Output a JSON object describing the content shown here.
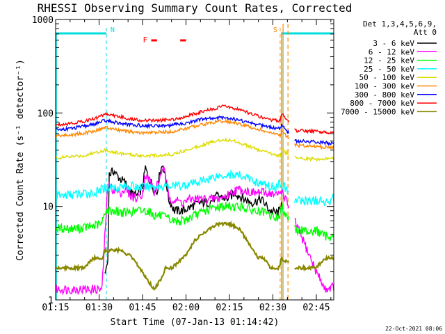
{
  "chart_data": {
    "type": "line",
    "title": "RHESSI Observing Summary Count Rates, Corrected",
    "xlabel": "Start Time (07-Jan-13 01:14:42)",
    "ylabel": "Corrected Count Rate (s⁻¹ detector⁻¹)",
    "yscale": "log",
    "ylim": [
      1,
      1000
    ],
    "xlim_minutes": [
      0,
      96
    ],
    "x_tick_minutes": [
      0,
      15,
      30,
      45,
      60,
      75,
      90
    ],
    "x_tick_labels": [
      "01:15",
      "01:30",
      "01:45",
      "02:00",
      "02:15",
      "02:30",
      "02:45"
    ],
    "y_tick_values": [
      1,
      10,
      100,
      1000
    ],
    "y_tick_labels": [
      "1",
      "10",
      "100",
      "1000"
    ],
    "legend_header": [
      "Det 1,3,4,5,6,9,",
      "Att 0"
    ],
    "legend_position": "right",
    "footer_date": "22-Oct-2021 08:06",
    "annotations": [
      {
        "label": "N",
        "minute": 17.5,
        "color": "#00dddd"
      },
      {
        "label": "S",
        "minute": 77.5,
        "color": "#ff8800"
      }
    ],
    "flare_flag": {
      "label": "F",
      "color": "#ff0000",
      "segments_minutes": [
        [
          33,
          35
        ],
        [
          43,
          45
        ]
      ]
    },
    "night_periods_minutes": [
      [
        0,
        17.5
      ],
      [
        77.8,
        96
      ]
    ],
    "saa_markers_minutes": [
      78.5,
      80.2
    ],
    "gap_minutes": [
      80.5,
      82.5
    ],
    "series": [
      {
        "name": "3 - 6 keV",
        "color": "#000000",
        "points": [
          [
            17,
            1.9
          ],
          [
            18,
            2.6
          ],
          [
            18.5,
            22
          ],
          [
            20,
            24
          ],
          [
            22,
            20
          ],
          [
            24,
            18
          ],
          [
            26,
            14
          ],
          [
            28,
            13
          ],
          [
            30,
            16
          ],
          [
            31,
            26
          ],
          [
            32,
            20
          ],
          [
            33,
            18
          ],
          [
            34,
            15
          ],
          [
            35,
            14
          ],
          [
            36,
            24
          ],
          [
            37,
            28
          ],
          [
            38,
            20
          ],
          [
            39,
            12
          ],
          [
            41,
            9
          ],
          [
            44,
            9
          ],
          [
            47,
            10
          ],
          [
            50,
            11
          ],
          [
            53,
            11
          ],
          [
            56,
            13
          ],
          [
            59,
            12
          ],
          [
            62,
            14
          ],
          [
            65,
            12
          ],
          [
            68,
            11
          ],
          [
            71,
            12
          ],
          [
            74,
            9
          ],
          [
            76,
            8.5
          ],
          [
            77.5,
            9
          ],
          [
            78,
            12
          ]
        ]
      },
      {
        "name": "6 - 12 keV",
        "color": "#ff00ff",
        "points": [
          [
            0,
            1.3
          ],
          [
            12,
            1.3
          ],
          [
            16,
            1.3
          ],
          [
            18,
            17
          ],
          [
            20,
            15
          ],
          [
            22,
            14
          ],
          [
            24,
            15
          ],
          [
            26,
            13
          ],
          [
            28,
            12
          ],
          [
            30,
            14
          ],
          [
            31,
            22
          ],
          [
            33,
            18
          ],
          [
            34,
            14
          ],
          [
            36,
            20
          ],
          [
            37,
            27
          ],
          [
            38,
            20
          ],
          [
            39,
            13
          ],
          [
            40,
            12
          ],
          [
            44,
            11
          ],
          [
            47,
            12
          ],
          [
            50,
            12
          ],
          [
            53,
            12
          ],
          [
            56,
            12
          ],
          [
            59,
            13
          ],
          [
            62,
            15
          ],
          [
            65,
            15
          ],
          [
            68,
            14
          ],
          [
            71,
            14
          ],
          [
            74,
            14
          ],
          [
            76,
            13
          ],
          [
            77.5,
            14
          ],
          [
            78,
            15
          ],
          [
            90,
            2
          ],
          [
            93,
            1.3
          ],
          [
            96,
            1.4
          ]
        ]
      },
      {
        "name": "12 - 25 keV",
        "color": "#00ff00",
        "points": [
          [
            0,
            5.8
          ],
          [
            8,
            5.8
          ],
          [
            13,
            6.2
          ],
          [
            16,
            6.5
          ],
          [
            17,
            9
          ],
          [
            20,
            9
          ],
          [
            24,
            8.5
          ],
          [
            28,
            9
          ],
          [
            32,
            9
          ],
          [
            34,
            8
          ],
          [
            36,
            8
          ],
          [
            40,
            7
          ],
          [
            44,
            7
          ],
          [
            48,
            8
          ],
          [
            52,
            9
          ],
          [
            56,
            10
          ],
          [
            60,
            10
          ],
          [
            64,
            10
          ],
          [
            68,
            9
          ],
          [
            72,
            8.5
          ],
          [
            76,
            7.5
          ],
          [
            77.5,
            8
          ],
          [
            78,
            10
          ],
          [
            83,
            5.5
          ],
          [
            90,
            5.5
          ],
          [
            93,
            4.8
          ],
          [
            96,
            4.8
          ]
        ]
      },
      {
        "name": "25 - 50 keV",
        "color": "#00ffff",
        "points": [
          [
            0,
            13
          ],
          [
            8,
            13.5
          ],
          [
            14,
            14
          ],
          [
            17,
            16
          ],
          [
            20,
            16
          ],
          [
            25,
            16.5
          ],
          [
            30,
            16
          ],
          [
            35,
            16.5
          ],
          [
            40,
            16.5
          ],
          [
            45,
            17
          ],
          [
            50,
            18.5
          ],
          [
            55,
            21
          ],
          [
            60,
            22
          ],
          [
            65,
            21
          ],
          [
            68,
            19
          ],
          [
            72,
            17
          ],
          [
            76,
            16
          ],
          [
            77.5,
            18
          ],
          [
            83,
            11.5
          ],
          [
            90,
            11.5
          ],
          [
            93,
            11
          ],
          [
            96,
            12.5
          ]
        ]
      },
      {
        "name": "50 - 100 keV",
        "color": "#dddd00",
        "points": [
          [
            0,
            33
          ],
          [
            5,
            34
          ],
          [
            10,
            35
          ],
          [
            14,
            38
          ],
          [
            17,
            40
          ],
          [
            20,
            38
          ],
          [
            25,
            36
          ],
          [
            30,
            35
          ],
          [
            35,
            35
          ],
          [
            40,
            36
          ],
          [
            45,
            40
          ],
          [
            50,
            45
          ],
          [
            55,
            50
          ],
          [
            58,
            52
          ],
          [
            62,
            50
          ],
          [
            66,
            45
          ],
          [
            70,
            40
          ],
          [
            74,
            37
          ],
          [
            77.5,
            35
          ],
          [
            78,
            40
          ],
          [
            83,
            33
          ],
          [
            90,
            32
          ],
          [
            93,
            32
          ],
          [
            96,
            33
          ]
        ]
      },
      {
        "name": "100 - 300 keV",
        "color": "#ff8800",
        "points": [
          [
            0,
            57
          ],
          [
            5,
            58
          ],
          [
            10,
            61
          ],
          [
            14,
            65
          ],
          [
            17,
            70
          ],
          [
            20,
            67
          ],
          [
            25,
            63
          ],
          [
            30,
            61
          ],
          [
            35,
            62
          ],
          [
            40,
            63
          ],
          [
            45,
            68
          ],
          [
            50,
            75
          ],
          [
            55,
            80
          ],
          [
            58,
            82
          ],
          [
            62,
            78
          ],
          [
            66,
            72
          ],
          [
            70,
            67
          ],
          [
            74,
            61
          ],
          [
            77.5,
            58
          ],
          [
            78,
            63
          ],
          [
            83,
            45
          ],
          [
            90,
            44
          ],
          [
            93,
            43
          ],
          [
            96,
            43
          ]
        ]
      },
      {
        "name": "300 - 800 keV",
        "color": "#0000ff",
        "points": [
          [
            0,
            66
          ],
          [
            5,
            68
          ],
          [
            10,
            72
          ],
          [
            14,
            77
          ],
          [
            17,
            83
          ],
          [
            20,
            80
          ],
          [
            25,
            75
          ],
          [
            30,
            73
          ],
          [
            35,
            73
          ],
          [
            40,
            74
          ],
          [
            45,
            78
          ],
          [
            50,
            85
          ],
          [
            55,
            88
          ],
          [
            58,
            90
          ],
          [
            62,
            86
          ],
          [
            66,
            80
          ],
          [
            70,
            75
          ],
          [
            74,
            70
          ],
          [
            77.5,
            68
          ],
          [
            78,
            75
          ],
          [
            83,
            50
          ],
          [
            90,
            49
          ],
          [
            93,
            48
          ],
          [
            96,
            47
          ]
        ]
      },
      {
        "name": "800 - 7000 keV",
        "color": "#ff0000",
        "points": [
          [
            0,
            75
          ],
          [
            5,
            77
          ],
          [
            10,
            82
          ],
          [
            14,
            88
          ],
          [
            17,
            98
          ],
          [
            20,
            94
          ],
          [
            25,
            87
          ],
          [
            30,
            83
          ],
          [
            35,
            83
          ],
          [
            40,
            85
          ],
          [
            45,
            92
          ],
          [
            50,
            102
          ],
          [
            55,
            112
          ],
          [
            58,
            118
          ],
          [
            62,
            112
          ],
          [
            66,
            102
          ],
          [
            70,
            92
          ],
          [
            74,
            85
          ],
          [
            77.5,
            82
          ],
          [
            78,
            100
          ],
          [
            83,
            65
          ],
          [
            90,
            63
          ],
          [
            93,
            62
          ],
          [
            96,
            62
          ]
        ]
      },
      {
        "name": "7000 - 15000 keV",
        "color": "#888800",
        "points": [
          [
            0,
            2.2
          ],
          [
            10,
            2.2
          ],
          [
            13,
            2.8
          ],
          [
            16,
            2.8
          ],
          [
            17,
            3.4
          ],
          [
            22,
            3.4
          ],
          [
            26,
            2.9
          ],
          [
            29,
            2.2
          ],
          [
            32,
            1.6
          ],
          [
            34,
            1.3
          ],
          [
            36,
            1.6
          ],
          [
            38,
            2.2
          ],
          [
            40,
            2.2
          ],
          [
            44,
            2.8
          ],
          [
            46,
            3.4
          ],
          [
            48,
            4.3
          ],
          [
            52,
            5.5
          ],
          [
            56,
            6.5
          ],
          [
            60,
            6.5
          ],
          [
            64,
            5.5
          ],
          [
            66,
            4.3
          ],
          [
            68,
            3.4
          ],
          [
            70,
            2.8
          ],
          [
            72,
            2.8
          ],
          [
            74,
            2.2
          ],
          [
            77,
            2.2
          ],
          [
            78,
            2.8
          ],
          [
            83,
            2.2
          ],
          [
            90,
            2.2
          ],
          [
            93,
            2.8
          ],
          [
            96,
            2.8
          ]
        ]
      }
    ]
  }
}
